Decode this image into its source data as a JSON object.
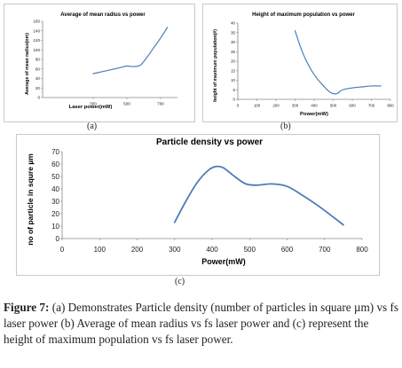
{
  "figure": {
    "caption_label": "Figure 7:",
    "caption_text": " (a) Demonstrates Particle density (number of particles in square µm) vs fs laser power (b) Average of mean radius vs fs laser power and (c) represent the height of maximum population vs fs laser power."
  },
  "panel_labels": {
    "a": "(a)",
    "b": "(b)",
    "c": "(c)"
  },
  "colors": {
    "series": "#4a7ebb",
    "axis": "#868686",
    "frame": "#c9c9c9",
    "text": "#222222"
  },
  "chart_data": [
    {
      "id": "a",
      "type": "line",
      "title": "Average of mean radius vs power",
      "xlabel": "Laser power(mW)",
      "ylabel": "Average of mean radius(nm)",
      "xlim": [
        0,
        800
      ],
      "ylim": [
        0,
        160
      ],
      "xticks": [
        300,
        500,
        700
      ],
      "yticks": [
        0,
        20,
        40,
        60,
        80,
        100,
        120,
        140,
        160
      ],
      "grid": false,
      "series": [
        {
          "x": [
            300,
            350,
            400,
            450,
            500,
            540,
            580,
            620,
            660,
            700,
            740
          ],
          "values": [
            50,
            54,
            58,
            62,
            66,
            65,
            68,
            85,
            105,
            125,
            147
          ]
        }
      ]
    },
    {
      "id": "b",
      "type": "line",
      "title": "Height of maximum population vs power",
      "xlabel": "Power(mW)",
      "ylabel": "height of maximum population(#)",
      "xlim": [
        0,
        800
      ],
      "ylim": [
        0,
        40
      ],
      "xticks": [
        0,
        100,
        200,
        300,
        400,
        500,
        600,
        700,
        800
      ],
      "yticks": [
        0,
        5,
        10,
        15,
        20,
        25,
        30,
        35,
        40
      ],
      "grid": false,
      "series": [
        {
          "x": [
            300,
            330,
            360,
            400,
            440,
            480,
            500,
            520,
            550,
            600,
            650,
            700,
            750
          ],
          "values": [
            36,
            27,
            20,
            13,
            8,
            4,
            3,
            3,
            5,
            6,
            6.5,
            7,
            7
          ]
        }
      ]
    },
    {
      "id": "c",
      "type": "line",
      "title": "Particle density vs power",
      "xlabel": "Power(mW)",
      "ylabel": "no of particle in squre µm",
      "xlim": [
        0,
        800
      ],
      "ylim": [
        0,
        70
      ],
      "xticks": [
        0,
        100,
        200,
        300,
        400,
        500,
        600,
        700,
        800
      ],
      "yticks": [
        0,
        10,
        20,
        30,
        40,
        50,
        60,
        70
      ],
      "grid": false,
      "series": [
        {
          "x": [
            300,
            330,
            360,
            390,
            410,
            430,
            460,
            490,
            520,
            560,
            600,
            640,
            680,
            720,
            750
          ],
          "values": [
            13,
            30,
            45,
            55,
            58,
            57,
            50,
            44,
            43,
            44,
            42,
            35,
            27,
            18,
            11
          ]
        }
      ]
    }
  ]
}
